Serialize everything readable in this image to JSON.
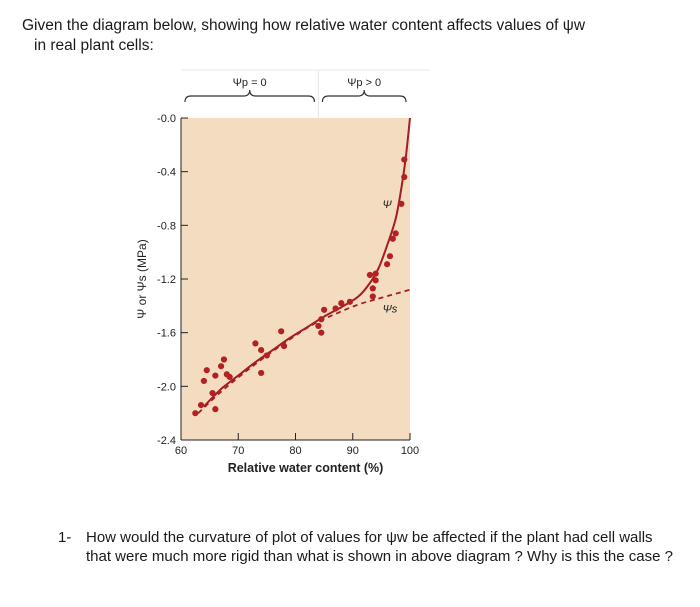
{
  "intro": {
    "line1": "Given the diagram below, showing how relative water content affects values of ψw",
    "line2": "in real plant cells:"
  },
  "question": {
    "number": "1-",
    "text": "How would the curvature of plot of values for ψw be affected if the plant had cell walls that were much more rigid than what is shown in above diagram ? Why is this the case ?"
  },
  "chart_data": {
    "type": "scatter",
    "title": "",
    "xlabel": "Relative water content (%)",
    "ylabel": "Ψ or Ψs (MPa)",
    "xlim": [
      60,
      100
    ],
    "ylim": [
      -2.4,
      0
    ],
    "x_ticks": [
      60,
      70,
      80,
      90,
      100
    ],
    "x_tick_labels": [
      "60",
      "70",
      "80",
      "90",
      "100"
    ],
    "y_ticks": [
      0,
      -0.4,
      -0.8,
      -1.2,
      -1.6,
      -2.0,
      -2.4
    ],
    "y_tick_labels": [
      "-0.0",
      "-0.4",
      "-0.8",
      "-1.2",
      "-1.6",
      "-2.0",
      "-2.4"
    ],
    "grid": false,
    "background_color": "#f3dcc0",
    "point_color": "#b22222",
    "line_color": "#a41d26",
    "regions": [
      {
        "label": "Ψp = 0",
        "x_range": [
          60,
          84
        ]
      },
      {
        "label": "Ψp > 0",
        "x_range": [
          84,
          100
        ]
      }
    ],
    "series": [
      {
        "name": "Ψ",
        "style": "solid",
        "x": [
          64,
          67,
          70,
          73,
          76,
          79,
          82,
          85,
          88,
          91,
          93,
          94.5,
          96,
          97.5,
          98.5,
          99.3,
          100
        ],
        "y": [
          -2.15,
          -2.02,
          -1.92,
          -1.82,
          -1.73,
          -1.64,
          -1.56,
          -1.48,
          -1.41,
          -1.33,
          -1.23,
          -1.12,
          -0.95,
          -0.75,
          -0.52,
          -0.28,
          0.0
        ]
      },
      {
        "name": "Ψs",
        "style": "dashed",
        "x": [
          63,
          67,
          71,
          75,
          79,
          83,
          87,
          91,
          95,
          100
        ],
        "y": [
          -2.2,
          -2.04,
          -1.9,
          -1.77,
          -1.65,
          -1.54,
          -1.46,
          -1.39,
          -1.34,
          -1.28
        ]
      },
      {
        "name": "data",
        "style": "points",
        "x": [
          62.5,
          63.5,
          64,
          64.5,
          65.5,
          66,
          66,
          67,
          67.5,
          68,
          68.5,
          73,
          74,
          74,
          75,
          77.5,
          78,
          84,
          84.5,
          84.5,
          85,
          87,
          88,
          89.5,
          93,
          93.5,
          93.5,
          94,
          94,
          96,
          96.5,
          97,
          97.5,
          98.5,
          99,
          99
        ],
        "y": [
          -2.2,
          -2.14,
          -1.96,
          -1.88,
          -2.05,
          -1.92,
          -2.17,
          -1.85,
          -1.8,
          -1.91,
          -1.93,
          -1.68,
          -1.73,
          -1.9,
          -1.77,
          -1.59,
          -1.7,
          -1.55,
          -1.5,
          -1.6,
          -1.43,
          -1.42,
          -1.38,
          -1.37,
          -1.17,
          -1.27,
          -1.33,
          -1.16,
          -1.21,
          -1.09,
          -1.03,
          -0.9,
          -0.86,
          -0.64,
          -0.44,
          -0.31
        ]
      }
    ],
    "annotations": [
      {
        "text": "Ψ",
        "x": 96,
        "y": -0.67
      },
      {
        "text": "Ψs",
        "x": 96.5,
        "y": -1.45
      }
    ]
  }
}
